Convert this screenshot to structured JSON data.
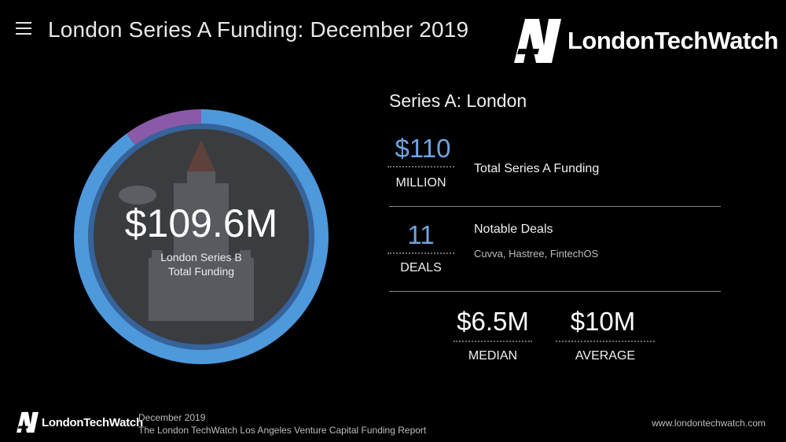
{
  "header": {
    "title": "London Series A Funding: December 2019",
    "brand_name": "LondonTechWatch",
    "brand_mark": "AW"
  },
  "donut": {
    "value": "$109.6M",
    "label_line1": "London Series B",
    "label_line2": "Total Funding",
    "segments": [
      {
        "fraction": 0.9,
        "color": "#4e98dc"
      },
      {
        "fraction": 0.1,
        "color": "#8a5aa8"
      }
    ]
  },
  "stats": {
    "section_title": "Series A: London",
    "total": {
      "value": "$110",
      "unit": "MILLION",
      "label": "Total Series A Funding"
    },
    "deals": {
      "value": "11",
      "unit": "DEALS",
      "label": "Notable Deals",
      "companies": "Cuvva, Hastree, FintechOS"
    },
    "median": {
      "value": "$6.5M",
      "unit": "MEDIAN"
    },
    "average": {
      "value": "$10M",
      "unit": "AVERAGE"
    }
  },
  "footer": {
    "brand_name": "LondonTechWatch",
    "brand_mark": "AW",
    "date": "December 2019",
    "report": "The London TechWatch Los Angeles Venture Capital Funding Report",
    "url": "www.londontechwatch.com"
  },
  "colors": {
    "accent_blue": "#6fa4e0",
    "ring_blue": "#4e98dc",
    "ring_purple": "#8a5aa8"
  }
}
